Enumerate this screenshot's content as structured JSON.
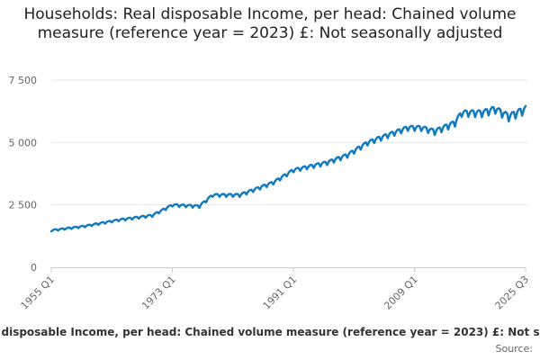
{
  "chart_data": {
    "type": "line",
    "title": "Households: Real disposable Income, per head: Chained volume measure (reference year = 2023) £: Not seasonally adjusted",
    "xlabel": "",
    "ylabel": "",
    "ylim": [
      0,
      7500
    ],
    "yticks": [
      0,
      2500,
      5000,
      7500
    ],
    "ytick_labels": [
      "0",
      "2 500",
      "5 000",
      "7 500"
    ],
    "xlim": [
      "1955 Q1",
      "2025 Q3"
    ],
    "xticks": [
      "1955 Q1",
      "1973 Q1",
      "1991 Q1",
      "2009 Q1",
      "2025 Q3"
    ],
    "grid": true,
    "series": [
      {
        "name": "Households: Real disposable Income, per head: Chained volume measure (reference year = 2023) £: Not seasonally adjusted",
        "color": "#0f7ac0",
        "anchors": [
          {
            "year": 1955.0,
            "value": 1480
          },
          {
            "year": 1960.0,
            "value": 1650
          },
          {
            "year": 1965.0,
            "value": 1900
          },
          {
            "year": 1970.0,
            "value": 2080
          },
          {
            "year": 1973.0,
            "value": 2500
          },
          {
            "year": 1977.0,
            "value": 2450
          },
          {
            "year": 1979.0,
            "value": 2900
          },
          {
            "year": 1983.0,
            "value": 2900
          },
          {
            "year": 1988.0,
            "value": 3400
          },
          {
            "year": 1991.0,
            "value": 3900
          },
          {
            "year": 1996.0,
            "value": 4200
          },
          {
            "year": 1999.0,
            "value": 4500
          },
          {
            "year": 2002.0,
            "value": 5000
          },
          {
            "year": 2005.0,
            "value": 5300
          },
          {
            "year": 2008.0,
            "value": 5600
          },
          {
            "year": 2010.0,
            "value": 5600
          },
          {
            "year": 2012.0,
            "value": 5450
          },
          {
            "year": 2015.0,
            "value": 5800
          },
          {
            "year": 2016.0,
            "value": 6200
          },
          {
            "year": 2019.0,
            "value": 6200
          },
          {
            "year": 2021.0,
            "value": 6350
          },
          {
            "year": 2023.0,
            "value": 6050
          },
          {
            "year": 2025.5,
            "value": 6350
          }
        ],
        "seasonal_amplitude": [
          {
            "year": 1955.0,
            "value": 40
          },
          {
            "year": 1990.0,
            "value": 90
          },
          {
            "year": 2010.0,
            "value": 140
          },
          {
            "year": 2025.5,
            "value": 220
          }
        ]
      }
    ]
  },
  "legend": {
    "label": "Households: Real disposable Income, per head: Chained volume measure (reference year = 2023) £: Not seasonally adjusted"
  },
  "source": {
    "label": "Source:"
  }
}
